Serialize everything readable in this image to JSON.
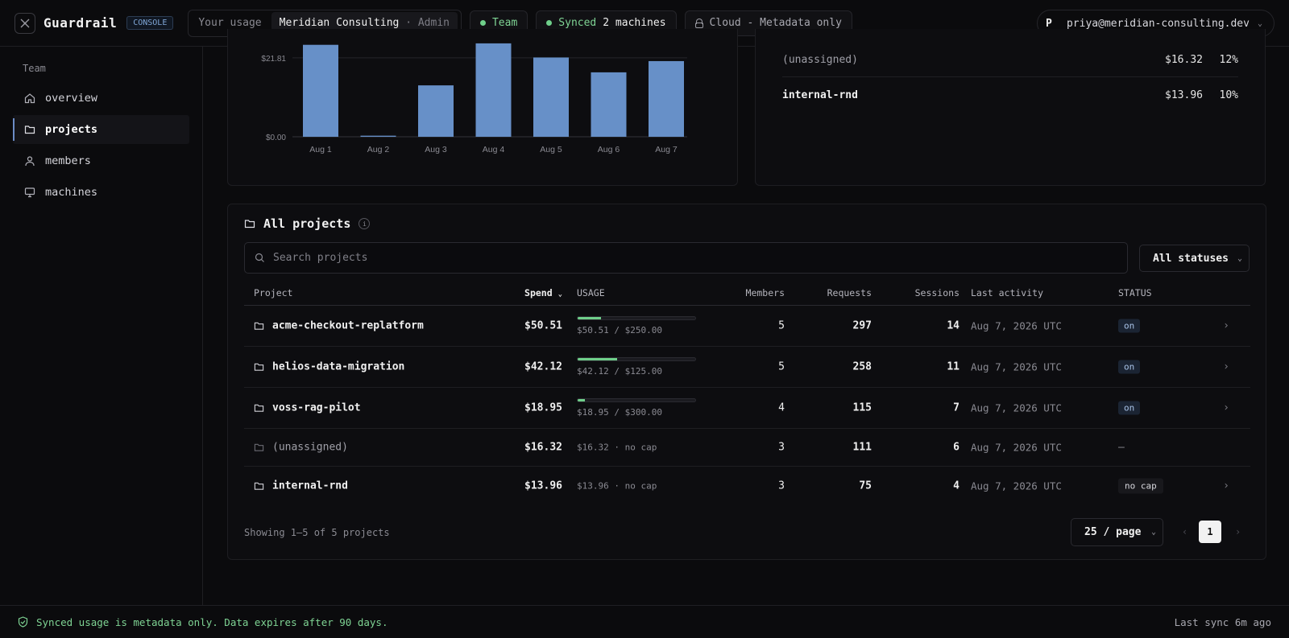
{
  "topbar": {
    "app_name": "Guardrail",
    "console_badge": "CONSOLE",
    "usage_label": "Your usage",
    "org_name": "Meridian Consulting",
    "org_role": "· Admin",
    "team_pill": "Team",
    "synced_label": "Synced",
    "synced_count": "2 machines",
    "cloud_label": "Cloud - Metadata only",
    "user_initial": "P",
    "user_email": "priya@meridian-consulting.dev"
  },
  "sidebar": {
    "header": "Team",
    "items": [
      {
        "label": "overview",
        "icon": "home-icon"
      },
      {
        "label": "projects",
        "icon": "folder-icon",
        "active": true
      },
      {
        "label": "members",
        "icon": "user-icon"
      },
      {
        "label": "machines",
        "icon": "monitor-icon"
      }
    ]
  },
  "chart_data": {
    "type": "bar",
    "categories": [
      "Aug 1",
      "Aug 2",
      "Aug 3",
      "Aug 4",
      "Aug 5",
      "Aug 6",
      "Aug 7"
    ],
    "values": [
      25.4,
      0.3,
      14.2,
      25.8,
      21.9,
      17.8,
      20.9
    ],
    "y_ticks": [
      "$21.81",
      "$0.00"
    ],
    "ylim": [
      0,
      26
    ],
    "color": "#6790c8"
  },
  "breakdown": {
    "rows": [
      {
        "name": "(unassigned)",
        "amount": "$16.32",
        "pct": "12%"
      },
      {
        "name": "internal-rnd",
        "amount": "$13.96",
        "pct": "10%"
      }
    ]
  },
  "projects": {
    "title": "All projects",
    "search_placeholder": "Search projects",
    "status_filter": "All statuses",
    "columns": {
      "project": "Project",
      "spend": "Spend",
      "usage": "USAGE",
      "members": "Members",
      "requests": "Requests",
      "sessions": "Sessions",
      "last_activity": "Last activity",
      "status": "STATUS"
    },
    "rows": [
      {
        "name": "acme-checkout-replatform",
        "spend": "$50.51",
        "usage": "$50.51 / $250.00",
        "usage_frac": 0.202,
        "members": "5",
        "requests": "297",
        "sessions": "14",
        "activity": "Aug 7, 2026 UTC",
        "status": "on",
        "has_arrow": true
      },
      {
        "name": "helios-data-migration",
        "spend": "$42.12",
        "usage": "$42.12 / $125.00",
        "usage_frac": 0.337,
        "members": "5",
        "requests": "258",
        "sessions": "11",
        "activity": "Aug 7, 2026 UTC",
        "status": "on",
        "has_arrow": true
      },
      {
        "name": "voss-rag-pilot",
        "spend": "$18.95",
        "usage": "$18.95 / $300.00",
        "usage_frac": 0.063,
        "members": "4",
        "requests": "115",
        "sessions": "7",
        "activity": "Aug 7, 2026 UTC",
        "status": "on",
        "has_arrow": true
      },
      {
        "name": "(unassigned)",
        "spend": "$16.32",
        "usage": "$16.32 · no cap",
        "usage_frac": null,
        "members": "3",
        "requests": "111",
        "sessions": "6",
        "activity": "Aug 7, 2026 UTC",
        "status": "—",
        "has_arrow": false,
        "dim": true
      },
      {
        "name": "internal-rnd",
        "spend": "$13.96",
        "usage": "$13.96 · no cap",
        "usage_frac": null,
        "members": "3",
        "requests": "75",
        "sessions": "4",
        "activity": "Aug 7, 2026 UTC",
        "status": "no cap",
        "has_arrow": true
      }
    ],
    "showing": "Showing 1–5 of 5 projects",
    "per_page": "25 / page",
    "current_page": "1"
  },
  "footer": {
    "message": "Synced usage is metadata only. Data expires after 90 days.",
    "last_sync": "Last sync 6m ago"
  }
}
